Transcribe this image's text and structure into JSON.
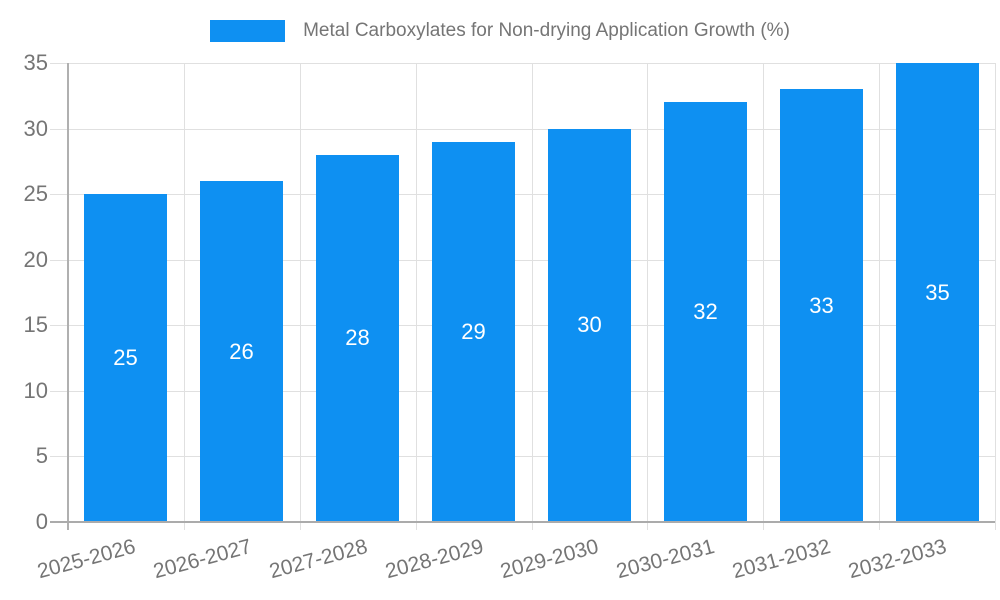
{
  "chart_data": {
    "type": "bar",
    "title": "Metal Carboxylates for Non-drying Application Growth (%)",
    "categories": [
      "2025-2026",
      "2026-2027",
      "2027-2028",
      "2028-2029",
      "2029-2030",
      "2030-2031",
      "2031-2032",
      "2032-2033"
    ],
    "values": [
      25,
      26,
      28,
      29,
      30,
      32,
      33,
      35
    ],
    "xlabel": "",
    "ylabel": "",
    "ylim": [
      0,
      35
    ],
    "yticks": [
      0,
      5,
      10,
      15,
      20,
      25,
      30,
      35
    ],
    "grid": true,
    "legend_position": "top",
    "bar_color": "#0e90f2",
    "value_label_color": "#ffffff",
    "axis_text_color": "#757575",
    "gridline_color": "#e0e0e0",
    "axis_line_color": "#b0b0b0"
  }
}
